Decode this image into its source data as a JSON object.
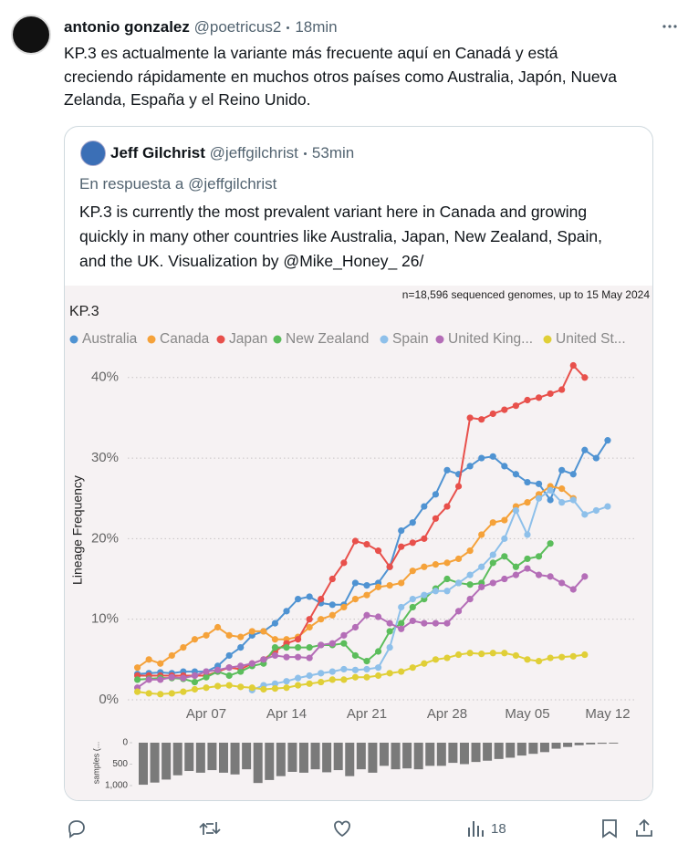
{
  "tweet": {
    "author_name": "antonio gonzalez",
    "handle": "@poetricus2",
    "time": "18min",
    "text_lines": [
      "KP.3 es actualmente la variante más frecuente aquí en Canadá y está",
      "creciendo rápidamente en muchos otros países como Australia, Japón, Nueva",
      "Zelanda, España y el Reino Unido."
    ]
  },
  "quote": {
    "author_name": "Jeff Gilchrist",
    "handle": "@jeffgilchrist",
    "time": "53min",
    "reply_context": "En respuesta a @jeffgilchrist",
    "text_lines": [
      "KP.3 is currently the most prevalent variant here in Canada and growing",
      "quickly in many other countries like Australia, Japan, New Zealand, Spain,",
      "and the UK. Visualization by @Mike_Honey_ 26/"
    ]
  },
  "actions": {
    "views": 18
  },
  "chart_data": [
    {
      "type": "line",
      "title": "KP.3",
      "annotation": "n=18,596 sequenced genomes, up to 15 May 2024",
      "ylabel": "Lineage Frequency",
      "categories": [
        null,
        null,
        null,
        null,
        null,
        null,
        "Apr 07",
        null,
        null,
        null,
        null,
        null,
        null,
        "Apr 14",
        null,
        null,
        null,
        null,
        null,
        null,
        "Apr 21",
        null,
        null,
        null,
        null,
        null,
        null,
        "Apr 28",
        null,
        null,
        null,
        null,
        null,
        null,
        "May 05",
        null,
        null,
        null,
        null,
        null,
        null,
        "May 12"
      ],
      "ylim": [
        -0.5,
        42.5
      ],
      "yticks": [
        {
          "value": 0,
          "label": "0%"
        },
        {
          "value": 10,
          "label": "10%"
        },
        {
          "value": 20,
          "label": "20%"
        },
        {
          "value": 30,
          "label": "30%"
        },
        {
          "value": 40,
          "label": "40%"
        }
      ],
      "grid": true,
      "series": [
        {
          "name": "Australia",
          "color": "#4f93d2",
          "values": [
            3.2,
            3.3,
            3.4,
            3.3,
            3.5,
            3.5,
            3.5,
            4.2,
            5.5,
            6.5,
            8,
            8.5,
            9.5,
            11,
            12.5,
            12.8,
            12,
            11.8,
            11.8,
            14.5,
            14.2,
            14.5,
            16.5,
            21,
            22,
            24,
            25.5,
            28.5,
            28,
            29,
            30,
            30.2,
            29,
            28,
            27,
            26.8,
            24.8,
            28.5,
            28,
            31,
            30,
            32.2
          ]
        },
        {
          "name": "Canada",
          "color": "#f5a23a",
          "values": [
            4,
            5,
            4.5,
            5.5,
            6.5,
            7.5,
            8,
            9,
            8,
            7.8,
            8.5,
            8.5,
            7.5,
            7.5,
            7.8,
            9,
            10,
            10.5,
            11.5,
            12.5,
            13,
            14,
            14.2,
            14.5,
            16,
            16.5,
            16.8,
            17,
            17.5,
            18.5,
            20.5,
            22,
            22.3,
            24,
            24.5,
            25.5,
            26.5,
            26.2,
            25,
            null,
            null,
            null
          ]
        },
        {
          "name": "Japan",
          "color": "#e8504b",
          "values": [
            3,
            3,
            3,
            3,
            3,
            3,
            3,
            3.5,
            4,
            3.8,
            4.5,
            5,
            6,
            7,
            7.5,
            10,
            12.5,
            15,
            17,
            19.7,
            19.3,
            18.5,
            16.5,
            19,
            19.5,
            20,
            22.5,
            24,
            26.5,
            35,
            34.8,
            35.5,
            36,
            36.5,
            37.2,
            37.5,
            38,
            38.5,
            41.5,
            40,
            null,
            null
          ]
        },
        {
          "name": "New Zealand",
          "color": "#5bbd5b",
          "values": [
            2.5,
            2.6,
            2.7,
            2.7,
            2.6,
            2.2,
            2.8,
            3.5,
            3,
            3.5,
            4.2,
            4.5,
            6.5,
            6.5,
            6.5,
            6.5,
            6.8,
            6.8,
            7,
            5.5,
            4.8,
            6,
            8.5,
            9.5,
            11.5,
            12.5,
            13.8,
            15,
            14.5,
            14.3,
            14.5,
            17,
            17.8,
            16.5,
            17.5,
            17.8,
            19.4,
            null,
            null,
            null,
            null,
            null
          ]
        },
        {
          "name": "Spain",
          "color": "#8ec0ea",
          "values": [
            null,
            null,
            null,
            null,
            null,
            null,
            null,
            null,
            null,
            null,
            1.2,
            1.8,
            2,
            2.3,
            2.7,
            3,
            3.3,
            3.5,
            3.8,
            3.7,
            3.8,
            4,
            6.5,
            11.5,
            12.5,
            13,
            13.5,
            13.5,
            14.5,
            15.5,
            16.5,
            18,
            20,
            23.5,
            20.5,
            25,
            26,
            24.5,
            24.8,
            23,
            23.5,
            24
          ]
        },
        {
          "name": "United King...",
          "color": "#b46db7",
          "values": [
            1.5,
            2.5,
            2.5,
            2.8,
            2.7,
            3,
            3.5,
            3.7,
            4,
            4.2,
            4.5,
            5,
            5.5,
            5.3,
            5.3,
            5.2,
            6.8,
            7,
            8,
            9,
            10.5,
            10.3,
            9.5,
            8.8,
            9.8,
            9.5,
            9.5,
            9.5,
            11,
            12.5,
            14,
            14.5,
            15,
            15.5,
            16.3,
            15.5,
            15.3,
            14.5,
            13.7,
            15.3,
            null,
            null
          ]
        },
        {
          "name": "United St...",
          "color": "#e0cf37",
          "values": [
            1,
            0.8,
            0.7,
            0.8,
            1,
            1.3,
            1.5,
            1.7,
            1.8,
            1.6,
            1.5,
            1.3,
            1.4,
            1.5,
            1.8,
            2,
            2.2,
            2.5,
            2.5,
            2.8,
            2.8,
            3,
            3.3,
            3.5,
            4,
            4.5,
            5,
            5.2,
            5.6,
            5.8,
            5.7,
            5.8,
            5.8,
            5.5,
            5,
            4.8,
            5.2,
            5.3,
            5.4,
            5.6,
            null,
            null
          ]
        }
      ]
    },
    {
      "type": "bar",
      "ylabel": "samples (...",
      "color": "#7a7a7a",
      "inverted": true,
      "values": [
        980,
        930,
        860,
        760,
        660,
        700,
        640,
        700,
        740,
        620,
        940,
        870,
        780,
        680,
        700,
        620,
        690,
        640,
        780,
        620,
        700,
        540,
        620,
        600,
        620,
        540,
        540,
        470,
        500,
        450,
        420,
        380,
        350,
        300,
        260,
        220,
        140,
        100,
        60,
        40,
        25,
        20
      ],
      "ylim": [
        0,
        1000
      ],
      "yticks": [
        0,
        500,
        {
          "value": 1000,
          "label": "1,000"
        }
      ]
    }
  ]
}
